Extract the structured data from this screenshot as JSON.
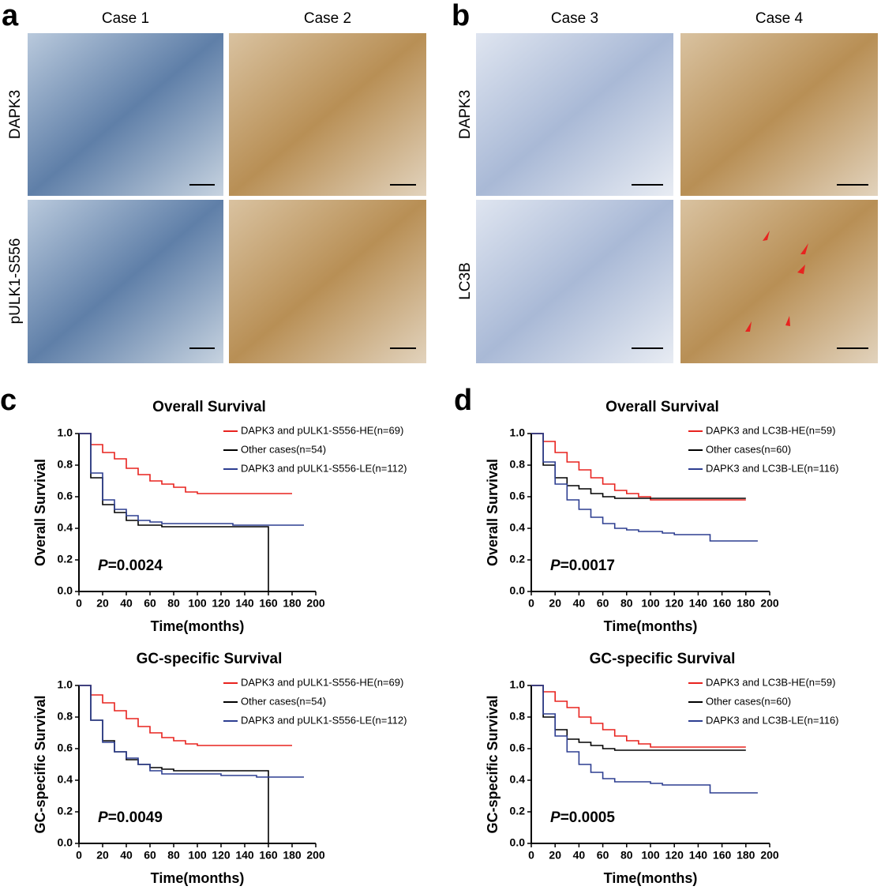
{
  "figure": {
    "panel_a": {
      "label": "a",
      "columns": [
        "Case 1",
        "Case 2"
      ],
      "rows": [
        "DAPK3",
        "pULK1-S556"
      ]
    },
    "panel_b": {
      "label": "b",
      "columns": [
        "Case 3",
        "Case 4"
      ],
      "rows": [
        "DAPK3",
        "LC3B"
      ]
    }
  },
  "chart_data": [
    {
      "type": "line",
      "panel_label": "c",
      "title": "Overall Survival",
      "x_label": "Time(months)",
      "y_label": "Overall Survival",
      "annotation": [
        "P",
        "=0.0024"
      ],
      "x": [
        0,
        10,
        20,
        30,
        40,
        50,
        60,
        70,
        80,
        90,
        100,
        110,
        120,
        130,
        140,
        150,
        160,
        170,
        180,
        190
      ],
      "series": [
        {
          "name": "DAPK3 and pULK1-S556-HE(n=69)",
          "color": "#e8231f",
          "values": [
            1.0,
            0.93,
            0.88,
            0.84,
            0.78,
            0.74,
            0.7,
            0.68,
            0.66,
            0.63,
            0.62,
            0.62,
            0.62,
            0.62,
            0.62,
            0.62,
            0.62,
            0.62,
            0.62,
            null
          ]
        },
        {
          "name": "Other cases(n=54)",
          "color": "#000000",
          "values": [
            1.0,
            0.72,
            0.55,
            0.5,
            0.45,
            0.42,
            0.42,
            0.41,
            0.41,
            0.41,
            0.41,
            0.41,
            0.41,
            0.41,
            0.41,
            0.41,
            0.0,
            null,
            null,
            null
          ]
        },
        {
          "name": "DAPK3 and pULK1-S556-LE(n=112)",
          "color": "#2d3e91",
          "values": [
            1.0,
            0.75,
            0.58,
            0.52,
            0.48,
            0.45,
            0.44,
            0.43,
            0.43,
            0.43,
            0.43,
            0.43,
            0.43,
            0.42,
            0.42,
            0.42,
            0.42,
            0.42,
            0.42,
            0.42
          ]
        }
      ],
      "xlim": [
        0,
        200
      ],
      "xticks": [
        0,
        20,
        40,
        60,
        80,
        100,
        120,
        140,
        160,
        180,
        200
      ],
      "ylim": [
        0,
        1
      ],
      "yticks": [
        {
          "value": 0,
          "label": "0.0"
        },
        0.2,
        0.4,
        0.6,
        0.8,
        {
          "value": 1,
          "label": "1.0"
        }
      ]
    },
    {
      "type": "line",
      "panel_label": "d",
      "title": "Overall Survival",
      "x_label": "Time(months)",
      "y_label": "Overall Survival",
      "annotation": [
        "P",
        "=0.0017"
      ],
      "x": [
        0,
        10,
        20,
        30,
        40,
        50,
        60,
        70,
        80,
        90,
        100,
        110,
        120,
        130,
        140,
        150,
        160,
        170,
        180,
        190
      ],
      "series": [
        {
          "name": "DAPK3 and LC3B-HE(n=59)",
          "color": "#e8231f",
          "values": [
            1.0,
            0.95,
            0.88,
            0.82,
            0.77,
            0.72,
            0.68,
            0.64,
            0.62,
            0.6,
            0.58,
            0.58,
            0.58,
            0.58,
            0.58,
            0.58,
            0.58,
            0.58,
            0.58,
            null
          ]
        },
        {
          "name": "Other cases(n=60)",
          "color": "#000000",
          "values": [
            1.0,
            0.8,
            0.72,
            0.67,
            0.65,
            0.62,
            0.6,
            0.59,
            0.59,
            0.59,
            0.59,
            0.59,
            0.59,
            0.59,
            0.59,
            0.59,
            0.59,
            0.59,
            0.59,
            null
          ]
        },
        {
          "name": "DAPK3 and LC3B-LE(n=116)",
          "color": "#2d3e91",
          "values": [
            1.0,
            0.82,
            0.68,
            0.58,
            0.52,
            0.47,
            0.43,
            0.4,
            0.39,
            0.38,
            0.38,
            0.37,
            0.36,
            0.36,
            0.36,
            0.32,
            0.32,
            0.32,
            0.32,
            0.32
          ]
        }
      ],
      "xlim": [
        0,
        200
      ],
      "xticks": [
        0,
        20,
        40,
        60,
        80,
        100,
        120,
        140,
        160,
        180,
        200
      ],
      "ylim": [
        0,
        1
      ],
      "yticks": [
        {
          "value": 0,
          "label": "0.0"
        },
        0.2,
        0.4,
        0.6,
        0.8,
        {
          "value": 1,
          "label": "1.0"
        }
      ]
    },
    {
      "type": "line",
      "title": "GC-specific Survival",
      "x_label": "Time(months)",
      "y_label": "GC-specific Survival",
      "annotation": [
        "P",
        "=0.0049"
      ],
      "x": [
        0,
        10,
        20,
        30,
        40,
        50,
        60,
        70,
        80,
        90,
        100,
        110,
        120,
        130,
        140,
        150,
        160,
        170,
        180,
        190
      ],
      "series": [
        {
          "name": "DAPK3 and pULK1-S556-HE(n=69)",
          "color": "#e8231f",
          "values": [
            1.0,
            0.94,
            0.89,
            0.84,
            0.79,
            0.74,
            0.7,
            0.67,
            0.65,
            0.63,
            0.62,
            0.62,
            0.62,
            0.62,
            0.62,
            0.62,
            0.62,
            0.62,
            0.62,
            null
          ]
        },
        {
          "name": "Other cases(n=54)",
          "color": "#000000",
          "values": [
            1.0,
            0.78,
            0.65,
            0.58,
            0.53,
            0.5,
            0.48,
            0.47,
            0.46,
            0.46,
            0.46,
            0.46,
            0.46,
            0.46,
            0.46,
            0.46,
            0.0,
            null,
            null,
            null
          ]
        },
        {
          "name": "DAPK3 and pULK1-S556-LE(n=112)",
          "color": "#2d3e91",
          "values": [
            1.0,
            0.78,
            0.64,
            0.58,
            0.54,
            0.5,
            0.46,
            0.44,
            0.44,
            0.44,
            0.44,
            0.44,
            0.43,
            0.43,
            0.43,
            0.42,
            0.42,
            0.42,
            0.42,
            0.42
          ]
        }
      ],
      "xlim": [
        0,
        200
      ],
      "xticks": [
        0,
        20,
        40,
        60,
        80,
        100,
        120,
        140,
        160,
        180,
        200
      ],
      "ylim": [
        0,
        1
      ],
      "yticks": [
        {
          "value": 0,
          "label": "0.0"
        },
        0.2,
        0.4,
        0.6,
        0.8,
        {
          "value": 1,
          "label": "1.0"
        }
      ]
    },
    {
      "type": "line",
      "title": "GC-specific Survival",
      "x_label": "Time(months)",
      "y_label": "GC-specific Survival",
      "annotation": [
        "P",
        "=0.0005"
      ],
      "x": [
        0,
        10,
        20,
        30,
        40,
        50,
        60,
        70,
        80,
        90,
        100,
        110,
        120,
        130,
        140,
        150,
        160,
        170,
        180,
        190
      ],
      "series": [
        {
          "name": "DAPK3 and LC3B-HE(n=59)",
          "color": "#e8231f",
          "values": [
            1.0,
            0.96,
            0.9,
            0.86,
            0.8,
            0.76,
            0.72,
            0.68,
            0.65,
            0.63,
            0.61,
            0.61,
            0.61,
            0.61,
            0.61,
            0.61,
            0.61,
            0.61,
            0.61,
            null
          ]
        },
        {
          "name": "Other cases(n=60)",
          "color": "#000000",
          "values": [
            1.0,
            0.8,
            0.72,
            0.66,
            0.64,
            0.62,
            0.6,
            0.59,
            0.59,
            0.59,
            0.59,
            0.59,
            0.59,
            0.59,
            0.59,
            0.59,
            0.59,
            0.59,
            0.59,
            null
          ]
        },
        {
          "name": "DAPK3 and LC3B-LE(n=116)",
          "color": "#2d3e91",
          "values": [
            1.0,
            0.82,
            0.68,
            0.58,
            0.5,
            0.45,
            0.41,
            0.39,
            0.39,
            0.39,
            0.38,
            0.37,
            0.37,
            0.37,
            0.37,
            0.32,
            0.32,
            0.32,
            0.32,
            0.32
          ]
        }
      ],
      "xlim": [
        0,
        200
      ],
      "xticks": [
        0,
        20,
        40,
        60,
        80,
        100,
        120,
        140,
        160,
        180,
        200
      ],
      "ylim": [
        0,
        1
      ],
      "yticks": [
        {
          "value": 0,
          "label": "0.0"
        },
        0.2,
        0.4,
        0.6,
        0.8,
        {
          "value": 1,
          "label": "1.0"
        }
      ]
    }
  ]
}
